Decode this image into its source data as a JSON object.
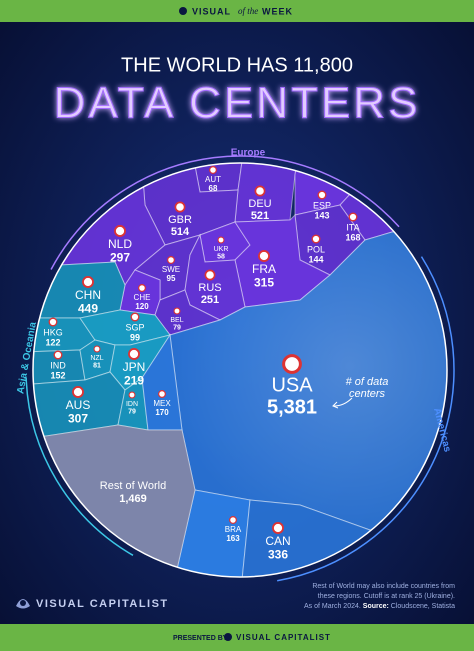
{
  "header": {
    "badge": [
      "VISUAL",
      "of the",
      "WEEK"
    ]
  },
  "chart_data": {
    "type": "voronoi",
    "title_line1": "THE WORLD HAS 11,800",
    "title": "DATA CENTERS",
    "series": [
      {
        "name": "Europe",
        "color": "#6c35e0",
        "categories": [
          "AUT",
          "DEU",
          "ESP",
          "GBR",
          "ITA",
          "UKR",
          "POL",
          "NLD",
          "FRA",
          "SWE",
          "RUS",
          "CHE",
          "BEL"
        ],
        "values": [
          68,
          521,
          143,
          514,
          168,
          58,
          144,
          297,
          315,
          95,
          251,
          120,
          79
        ]
      },
      {
        "name": "Asia & Oceania",
        "color": "#1a9fc6",
        "categories": [
          "CHN",
          "HKG",
          "SGP",
          "IND",
          "NZL",
          "JPN",
          "AUS",
          "IDN"
        ],
        "values": [
          449,
          122,
          99,
          152,
          81,
          219,
          307,
          79
        ]
      },
      {
        "name": "Americas",
        "color": "#2d7fe6",
        "categories": [
          "USA",
          "MEX",
          "BRA",
          "CAN"
        ],
        "values": [
          5381,
          170,
          163,
          336
        ],
        "value_labels": [
          "5,381",
          "170",
          "163",
          "336"
        ]
      }
    ],
    "other": {
      "label": "Rest of World",
      "value": 1469,
      "value_label": "1,469",
      "color": "#7d85aa"
    },
    "annotation": [
      "# of data",
      "centers"
    ]
  },
  "footer": {
    "note": [
      "Rest of World may also include countries from",
      "these regions. Cutoff is at rank 25 (Ukraine)."
    ],
    "as_of": "As of March 2024.",
    "source_label": "Source:",
    "source": "Cloudscene, Statista",
    "brand": "VISUAL CAPITALIST",
    "presented_by": "PRESENTED BY",
    "presenter": "VISUAL CAPITALIST"
  }
}
